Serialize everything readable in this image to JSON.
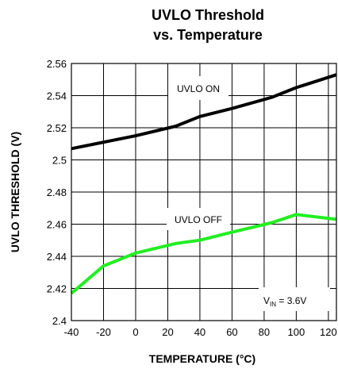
{
  "chart_data": {
    "type": "line",
    "title_line1": "UVLO Threshold",
    "title_line2": "vs. Temperature",
    "xlabel": "TEMPERATURE (°C)",
    "ylabel": "UVLO THRESHOLD (V)",
    "xlim": [
      -40,
      125
    ],
    "ylim": [
      2.4,
      2.56
    ],
    "x_ticks": [
      -40,
      -20,
      0,
      20,
      40,
      60,
      80,
      100,
      120
    ],
    "y_ticks": [
      2.4,
      2.42,
      2.44,
      2.46,
      2.48,
      2.5,
      2.52,
      2.54,
      2.56
    ],
    "x_tick_labels": [
      "-40",
      "-20",
      "0",
      "20",
      "40",
      "60",
      "80",
      "100",
      "120"
    ],
    "y_tick_labels": [
      "2.4",
      "2.42",
      "2.44",
      "2.46",
      "2.48",
      "2.5",
      "2.52",
      "2.54",
      "2.56"
    ],
    "grid": true,
    "series": [
      {
        "name": "UVLO ON",
        "color": "#000000",
        "x": [
          -40,
          -20,
          0,
          25,
          40,
          60,
          85,
          100,
          125
        ],
        "y": [
          2.507,
          2.511,
          2.515,
          2.521,
          2.527,
          2.532,
          2.539,
          2.545,
          2.553
        ]
      },
      {
        "name": "UVLO OFF",
        "color": "#22ee22",
        "x": [
          -40,
          -20,
          0,
          25,
          40,
          60,
          85,
          100,
          125
        ],
        "y": [
          2.417,
          2.434,
          2.442,
          2.448,
          2.45,
          2.455,
          2.461,
          2.466,
          2.463
        ]
      }
    ],
    "annotation_prefix": "V",
    "annotation_sub": "IN",
    "annotation_suffix": " = 3.6V"
  }
}
